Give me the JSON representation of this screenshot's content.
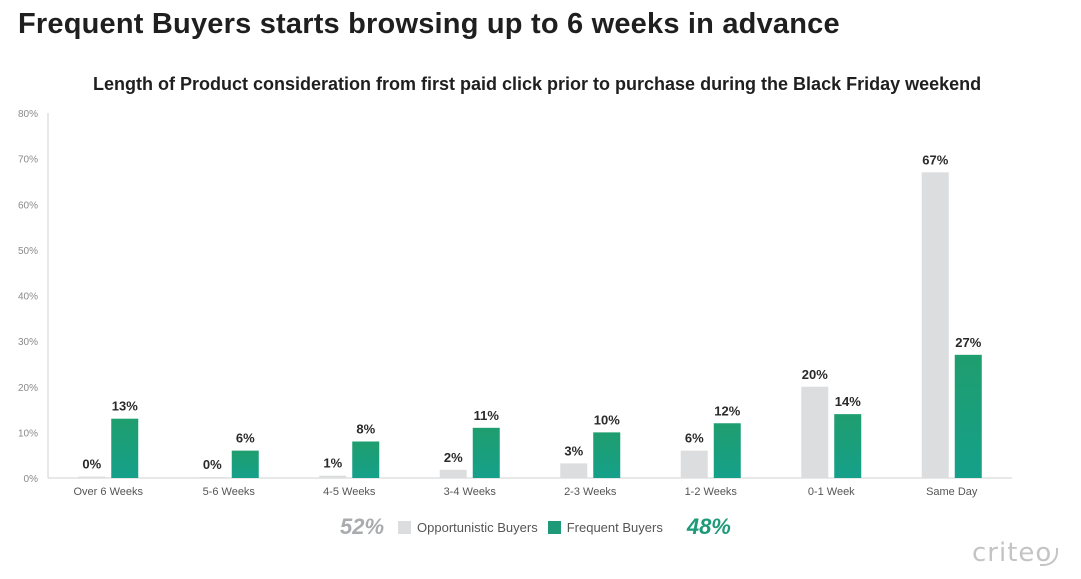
{
  "header": {
    "title": "Frequent Buyers starts browsing up to 6 weeks in advance"
  },
  "chart_data": {
    "type": "bar",
    "title": "Length of Product consideration from first paid click prior to purchase during the Black Friday weekend",
    "categories": [
      "Over 6 Weeks",
      "5-6 Weeks",
      "4-5 Weeks",
      "3-4 Weeks",
      "2-3 Weeks",
      "1-2 Weeks",
      "0-1 Week",
      "Same Day"
    ],
    "series": [
      {
        "name": "Opportunistic Buyers",
        "color": "#dcdddf",
        "values": [
          0.3,
          0.2,
          0.5,
          1.8,
          3.2,
          6,
          20,
          67
        ],
        "labels": [
          "0%",
          "0%",
          "1%",
          "2%",
          "3%",
          "6%",
          "20%",
          "67%"
        ]
      },
      {
        "name": "Frequent Buyers",
        "color": "#1e9a78",
        "values": [
          13,
          6,
          8,
          11,
          10,
          12,
          14,
          27
        ],
        "labels": [
          "13%",
          "6%",
          "8%",
          "11%",
          "10%",
          "12%",
          "14%",
          "27%"
        ]
      }
    ],
    "ylim": [
      0,
      80
    ],
    "yticks": [
      "0%",
      "10%",
      "20%",
      "30%",
      "40%",
      "50%",
      "60%",
      "70%",
      "80%"
    ],
    "ytick_values": [
      0,
      10,
      20,
      30,
      40,
      50,
      60,
      70,
      80
    ],
    "grid": false,
    "legend_position": "bottom-center"
  },
  "legend": {
    "opportunistic_share": "52%",
    "frequent_share": "48%",
    "opportunistic_label": "Opportunistic Buyers",
    "frequent_label": "Frequent Buyers",
    "opportunistic_color": "#dcdddf",
    "frequent_color": "#1e9a78"
  },
  "brand": {
    "logo_text": "criteo"
  }
}
